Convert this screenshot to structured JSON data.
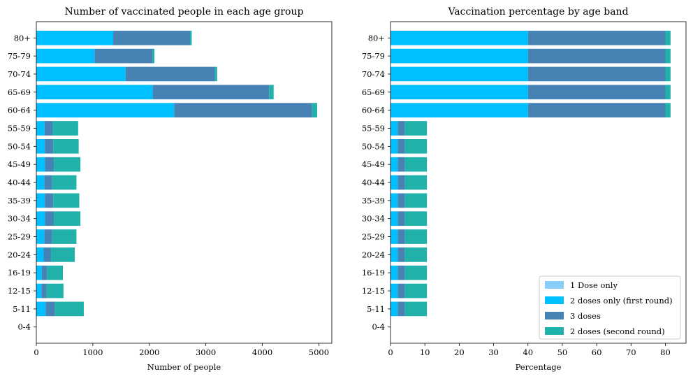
{
  "chart_data": [
    {
      "type": "bar",
      "orientation": "horizontal",
      "stacked": true,
      "title": "Number of vaccinated people in each age group",
      "xlabel": "Number of people",
      "ylabel": "",
      "xlim": [
        0,
        5230
      ],
      "xticks": [
        0,
        1000,
        2000,
        3000,
        4000,
        5000
      ],
      "categories": [
        "0-4",
        "5-11",
        "12-15",
        "16-19",
        "20-24",
        "25-29",
        "30-34",
        "35-39",
        "40-44",
        "45-49",
        "50-54",
        "55-59",
        "60-64",
        "65-69",
        "70-74",
        "75-79",
        "80+"
      ],
      "series": [
        {
          "name": "1 Dose only",
          "color": "#87cefa",
          "values": [
            0,
            0,
            0,
            0,
            0,
            0,
            0,
            0,
            0,
            0,
            0,
            0,
            0,
            0,
            0,
            0,
            0
          ]
        },
        {
          "name": "2 doses only (first round)",
          "color": "#00bfff",
          "values": [
            0,
            165,
            90,
            95,
            130,
            140,
            155,
            150,
            140,
            155,
            150,
            145,
            2440,
            2060,
            1580,
            1030,
            1360
          ]
        },
        {
          "name": "3 doses",
          "color": "#4682b4",
          "values": [
            0,
            165,
            90,
            95,
            130,
            140,
            155,
            150,
            140,
            155,
            150,
            145,
            2440,
            2060,
            1580,
            1030,
            1360
          ]
        },
        {
          "name": "2 doses (second round)",
          "color": "#20b2aa",
          "values": [
            0,
            510,
            300,
            280,
            420,
            430,
            470,
            460,
            430,
            470,
            450,
            450,
            90,
            80,
            40,
            30,
            30
          ]
        }
      ],
      "grid": false,
      "legend": null
    },
    {
      "type": "bar",
      "orientation": "horizontal",
      "stacked": true,
      "title": "Vaccination percentage by age band",
      "xlabel": "Percentage",
      "ylabel": "",
      "xlim": [
        0,
        86
      ],
      "xticks": [
        0,
        10,
        20,
        30,
        40,
        50,
        60,
        70,
        80
      ],
      "categories": [
        "0-4",
        "5-11",
        "12-15",
        "16-19",
        "20-24",
        "25-29",
        "30-34",
        "35-39",
        "40-44",
        "45-49",
        "50-54",
        "55-59",
        "60-64",
        "65-69",
        "70-74",
        "75-79",
        "80+"
      ],
      "series": [
        {
          "name": "1 Dose only",
          "color": "#87cefa",
          "values": [
            0,
            0,
            0,
            0,
            0,
            0,
            0,
            0,
            0,
            0,
            0,
            0,
            0,
            0,
            0,
            0,
            0
          ]
        },
        {
          "name": "2 doses only (first round)",
          "color": "#00bfff",
          "values": [
            0,
            2.1,
            2.1,
            2.1,
            2.1,
            2.1,
            2.1,
            2.1,
            2.1,
            2.1,
            2.1,
            2.1,
            40,
            40,
            40,
            40,
            40
          ]
        },
        {
          "name": "3 doses",
          "color": "#4682b4",
          "values": [
            0,
            2.1,
            2.1,
            2.1,
            2.1,
            2.1,
            2.1,
            2.1,
            2.1,
            2.1,
            2.1,
            2.1,
            40,
            40,
            40,
            40,
            40
          ]
        },
        {
          "name": "2 doses (second round)",
          "color": "#20b2aa",
          "values": [
            0,
            6.4,
            6.4,
            6.4,
            6.4,
            6.4,
            6.4,
            6.4,
            6.4,
            6.4,
            6.4,
            6.4,
            1.5,
            1.5,
            1.5,
            1.5,
            1.5
          ]
        }
      ],
      "grid": false,
      "legend": "lower-right"
    }
  ]
}
